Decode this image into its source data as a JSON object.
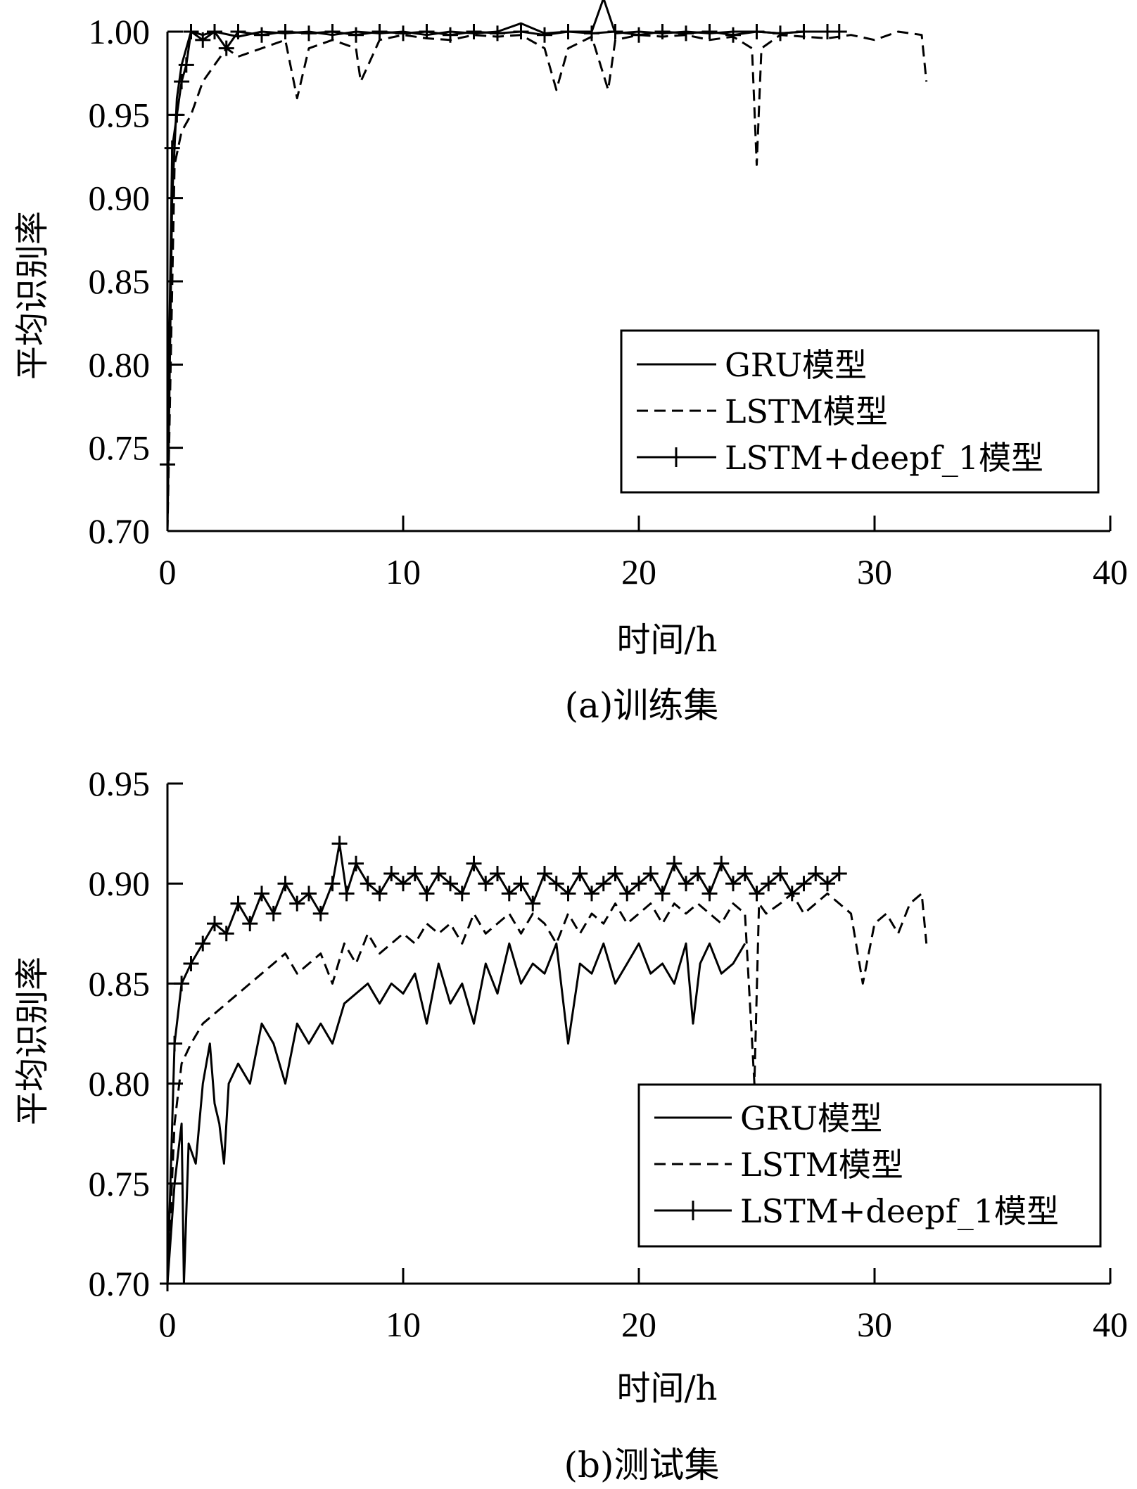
{
  "chart_data": [
    {
      "type": "line",
      "caption": "(a)训练集",
      "xlabel": "时间/h",
      "ylabel": "平均识别率",
      "xlim": [
        0,
        40
      ],
      "ylim": [
        0.7,
        1.0
      ],
      "xticks": [
        "0",
        "10",
        "20",
        "30",
        "40"
      ],
      "yticks": [
        "0.70",
        "0.75",
        "0.80",
        "0.85",
        "0.90",
        "0.95",
        "1.00"
      ],
      "legend_position": "lower-right",
      "series": [
        {
          "name": "GRU模型",
          "style": "solid",
          "x": [
            0,
            0.2,
            0.4,
            0.6,
            0.8,
            1,
            1.5,
            2,
            3,
            4,
            5,
            6,
            7,
            8,
            9,
            10,
            11,
            12,
            13,
            14,
            15,
            16,
            17,
            18,
            18.5,
            19,
            20,
            21,
            22,
            23,
            24,
            25,
            26,
            27,
            28,
            28.5
          ],
          "y": [
            0.7,
            0.9,
            0.96,
            0.98,
            0.99,
            1.0,
            0.998,
            1.0,
            0.997,
            1.0,
            0.999,
            1.0,
            0.998,
            1.0,
            0.999,
            1.0,
            0.998,
            1.0,
            0.999,
            1.0,
            1.005,
            0.999,
            1.0,
            1.0,
            1.02,
            0.999,
            1.0,
            0.999,
            1.0,
            0.999,
            1.0,
            1.0,
            0.999,
            1.0,
            1.0,
            1.0
          ]
        },
        {
          "name": "LSTM模型",
          "style": "dashed",
          "x": [
            0,
            0.3,
            0.6,
            1,
            1.5,
            2,
            2.5,
            3,
            4,
            5,
            5.5,
            6,
            7,
            8,
            8.2,
            9,
            10,
            11,
            12,
            13,
            14,
            15,
            16,
            16.5,
            17,
            18,
            18.7,
            19,
            20,
            21,
            22,
            23,
            24,
            24.8,
            25,
            25.2,
            26,
            27,
            28,
            29,
            30,
            31,
            32,
            32.2
          ],
          "y": [
            0.7,
            0.92,
            0.94,
            0.95,
            0.97,
            0.98,
            0.99,
            0.985,
            0.99,
            0.995,
            0.96,
            0.99,
            0.995,
            0.99,
            0.97,
            0.995,
            0.998,
            0.996,
            0.995,
            0.998,
            0.997,
            0.998,
            0.99,
            0.965,
            0.99,
            0.997,
            0.965,
            0.995,
            0.998,
            0.997,
            0.998,
            0.995,
            0.997,
            0.99,
            0.92,
            0.99,
            0.998,
            0.997,
            0.996,
            0.998,
            0.995,
            1.0,
            0.998,
            0.97
          ]
        },
        {
          "name": "LSTM+deepf_1模型",
          "style": "solid-plus",
          "x": [
            0,
            0.2,
            0.4,
            0.6,
            0.8,
            1,
            1.5,
            2,
            2.5,
            3,
            4,
            5,
            6,
            7,
            8,
            9,
            10,
            11,
            12,
            13,
            14,
            15,
            16,
            17,
            18,
            19,
            20,
            21,
            22,
            23,
            24,
            25,
            26,
            27,
            28,
            28.5
          ],
          "y": [
            0.74,
            0.93,
            0.95,
            0.97,
            0.98,
            1.0,
            0.995,
            1.0,
            0.99,
            1.0,
            0.998,
            1.0,
            0.999,
            1.0,
            0.998,
            1.0,
            0.999,
            1.0,
            0.998,
            1.0,
            0.999,
            1.0,
            0.998,
            1.0,
            0.999,
            1.0,
            0.998,
            1.0,
            0.999,
            1.0,
            0.998,
            1.0,
            0.999,
            1.0,
            1.0,
            1.0
          ]
        }
      ]
    },
    {
      "type": "line",
      "caption": "(b)测试集",
      "xlabel": "时间/h",
      "ylabel": "平均识别率",
      "xlim": [
        0,
        40
      ],
      "ylim": [
        0.7,
        0.95
      ],
      "xticks": [
        "0",
        "10",
        "20",
        "30",
        "40"
      ],
      "yticks": [
        "0.70",
        "0.75",
        "0.80",
        "0.85",
        "0.90",
        "0.95"
      ],
      "legend_position": "lower-right",
      "series": [
        {
          "name": "GRU模型",
          "style": "solid",
          "x": [
            0,
            0.3,
            0.6,
            0.7,
            0.9,
            1.2,
            1.5,
            1.8,
            2,
            2.2,
            2.4,
            2.6,
            3,
            3.5,
            4,
            4.5,
            5,
            5.5,
            6,
            6.5,
            7,
            7.5,
            8,
            8.5,
            9,
            9.5,
            10,
            10.5,
            11,
            11.5,
            12,
            12.5,
            13,
            13.5,
            14,
            14.5,
            15,
            15.5,
            16,
            16.5,
            17,
            17.5,
            18,
            18.5,
            19,
            19.5,
            20,
            20.5,
            21,
            21.5,
            22,
            22.3,
            22.6,
            23,
            23.5,
            24,
            24.5
          ],
          "y": [
            0.7,
            0.75,
            0.78,
            0.7,
            0.77,
            0.76,
            0.8,
            0.82,
            0.79,
            0.78,
            0.76,
            0.8,
            0.81,
            0.8,
            0.83,
            0.82,
            0.8,
            0.83,
            0.82,
            0.83,
            0.82,
            0.84,
            0.845,
            0.85,
            0.84,
            0.85,
            0.845,
            0.855,
            0.83,
            0.86,
            0.84,
            0.85,
            0.83,
            0.86,
            0.845,
            0.87,
            0.85,
            0.86,
            0.855,
            0.87,
            0.82,
            0.86,
            0.855,
            0.87,
            0.85,
            0.86,
            0.87,
            0.855,
            0.86,
            0.85,
            0.87,
            0.83,
            0.86,
            0.87,
            0.855,
            0.86,
            0.87
          ]
        },
        {
          "name": "LSTM模型",
          "style": "dashed",
          "x": [
            0,
            0.3,
            0.6,
            1,
            1.5,
            2,
            2.5,
            3,
            3.5,
            4,
            4.5,
            5,
            5.5,
            6,
            6.5,
            7,
            7.5,
            8,
            8.5,
            9,
            9.5,
            10,
            10.5,
            11,
            11.5,
            12,
            12.5,
            13,
            13.5,
            14,
            14.5,
            15,
            15.5,
            16,
            16.5,
            17,
            17.5,
            18,
            18.5,
            19,
            19.5,
            20,
            20.5,
            21,
            21.5,
            22,
            22.5,
            23,
            23.5,
            24,
            24.5,
            24.9,
            25.1,
            25.4,
            26,
            26.5,
            27,
            27.5,
            28,
            28.5,
            29,
            29.5,
            30,
            30.5,
            31,
            31.5,
            32,
            32.2
          ],
          "y": [
            0.7,
            0.78,
            0.81,
            0.82,
            0.83,
            0.835,
            0.84,
            0.845,
            0.85,
            0.855,
            0.86,
            0.865,
            0.855,
            0.86,
            0.865,
            0.85,
            0.87,
            0.86,
            0.875,
            0.865,
            0.87,
            0.875,
            0.87,
            0.88,
            0.875,
            0.88,
            0.87,
            0.885,
            0.875,
            0.88,
            0.885,
            0.875,
            0.885,
            0.88,
            0.87,
            0.885,
            0.875,
            0.885,
            0.88,
            0.89,
            0.88,
            0.885,
            0.89,
            0.88,
            0.89,
            0.885,
            0.89,
            0.885,
            0.88,
            0.89,
            0.885,
            0.8,
            0.89,
            0.885,
            0.89,
            0.895,
            0.885,
            0.89,
            0.895,
            0.89,
            0.885,
            0.85,
            0.88,
            0.885,
            0.875,
            0.89,
            0.895,
            0.87
          ]
        },
        {
          "name": "LSTM+deepf_1模型",
          "style": "solid-plus",
          "x": [
            0,
            0.3,
            0.6,
            1,
            1.5,
            2,
            2.5,
            3,
            3.5,
            4,
            4.5,
            5,
            5.5,
            6,
            6.5,
            7,
            7.3,
            7.6,
            8,
            8.5,
            9,
            9.5,
            10,
            10.5,
            11,
            11.5,
            12,
            12.5,
            13,
            13.5,
            14,
            14.5,
            15,
            15.5,
            16,
            16.5,
            17,
            17.5,
            18,
            18.5,
            19,
            19.5,
            20,
            20.5,
            21,
            21.5,
            22,
            22.5,
            23,
            23.5,
            24,
            24.5,
            25,
            25.5,
            26,
            26.5,
            27,
            27.5,
            28,
            28.5
          ],
          "y": [
            0.7,
            0.82,
            0.85,
            0.86,
            0.87,
            0.88,
            0.875,
            0.89,
            0.88,
            0.895,
            0.885,
            0.9,
            0.89,
            0.895,
            0.885,
            0.9,
            0.92,
            0.895,
            0.91,
            0.9,
            0.895,
            0.905,
            0.9,
            0.905,
            0.895,
            0.905,
            0.9,
            0.895,
            0.91,
            0.9,
            0.905,
            0.895,
            0.9,
            0.89,
            0.905,
            0.9,
            0.895,
            0.905,
            0.895,
            0.9,
            0.905,
            0.895,
            0.9,
            0.905,
            0.895,
            0.91,
            0.9,
            0.905,
            0.895,
            0.91,
            0.9,
            0.905,
            0.895,
            0.9,
            0.905,
            0.895,
            0.9,
            0.905,
            0.9,
            0.905
          ]
        }
      ]
    }
  ]
}
